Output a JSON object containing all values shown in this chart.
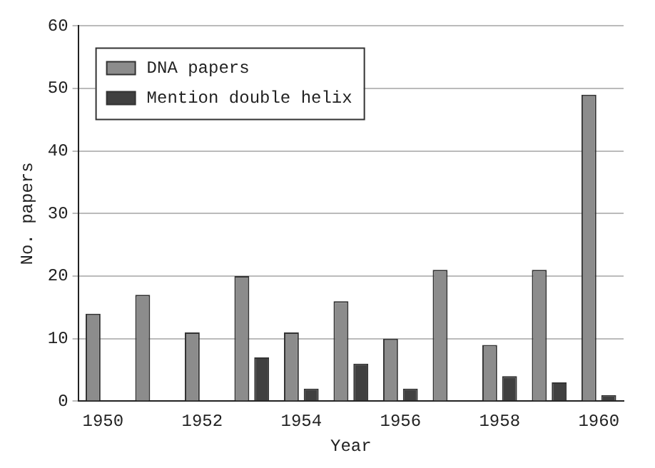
{
  "chart_data": {
    "type": "bar",
    "xlabel": "Year",
    "ylabel": "No. papers",
    "categories": [
      "1950",
      null,
      "1952",
      null,
      "1954",
      null,
      "1956",
      null,
      "1958",
      null,
      "1960"
    ],
    "series": [
      {
        "name": "DNA papers",
        "color": "#8c8c8c",
        "values": [
          14,
          17,
          11,
          20,
          11,
          16,
          10,
          21,
          9,
          21,
          49
        ]
      },
      {
        "name": "Mention double helix",
        "color": "#404040",
        "values": [
          null,
          null,
          null,
          7,
          2,
          6,
          2,
          null,
          4,
          3,
          1
        ]
      }
    ],
    "ylim": [
      0,
      60
    ],
    "yticks": [
      0,
      10,
      20,
      30,
      40,
      50,
      60
    ],
    "grid": "y",
    "legend": "top left"
  }
}
